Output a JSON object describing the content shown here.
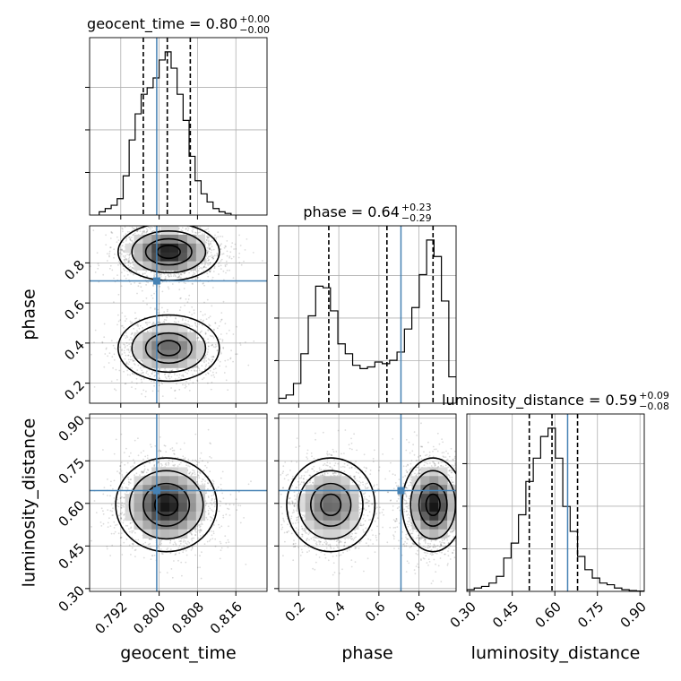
{
  "chart_data": {
    "type": "corner",
    "parameters": [
      "geocent_time",
      "phase",
      "luminosity_distance"
    ],
    "truth_color": "#4682b4",
    "diagonal": [
      {
        "parameter": "geocent_time",
        "title": {
          "main": "geocent_time = 0.80",
          "plus": "+0.00",
          "minus": "−0.00"
        },
        "xlim": [
          0.7855,
          0.8225
        ],
        "quantiles": [
          0.7967,
          0.8017,
          0.8065
        ],
        "truth": 0.7995,
        "hist_x0": 0.7875,
        "hist_dx": 0.00125,
        "hist": [
          0.02,
          0.04,
          0.06,
          0.1,
          0.24,
          0.46,
          0.62,
          0.74,
          0.78,
          0.84,
          0.95,
          1.0,
          0.9,
          0.74,
          0.58,
          0.36,
          0.21,
          0.13,
          0.08,
          0.04,
          0.02,
          0.01
        ]
      },
      {
        "parameter": "phase",
        "title": {
          "main": "phase = 0.64",
          "plus": "+0.23",
          "minus": "−0.29"
        },
        "xlim": [
          0.1,
          0.985
        ],
        "quantiles": [
          0.35,
          0.64,
          0.87
        ],
        "truth": 0.71,
        "hist_x0": 0.1,
        "hist_dx": 0.0369,
        "hist": [
          0.03,
          0.05,
          0.12,
          0.3,
          0.53,
          0.71,
          0.7,
          0.56,
          0.36,
          0.3,
          0.23,
          0.21,
          0.22,
          0.25,
          0.24,
          0.26,
          0.31,
          0.45,
          0.58,
          0.78,
          0.99,
          0.89,
          0.62,
          0.16
        ]
      },
      {
        "parameter": "luminosity_distance",
        "title": {
          "main": "luminosity_distance = 0.59",
          "plus": "+0.09",
          "minus": "−0.08"
        },
        "xlim": [
          0.29,
          0.915
        ],
        "quantiles": [
          0.51,
          0.59,
          0.68
        ],
        "truth": 0.645,
        "hist_x0": 0.29,
        "hist_dx": 0.026,
        "hist": [
          0.01,
          0.02,
          0.03,
          0.05,
          0.09,
          0.2,
          0.29,
          0.46,
          0.66,
          0.8,
          0.93,
          0.98,
          0.8,
          0.51,
          0.36,
          0.21,
          0.13,
          0.08,
          0.05,
          0.04,
          0.02,
          0.01,
          0.005,
          0.002
        ]
      }
    ],
    "panels_2d": [
      {
        "x": "geocent_time",
        "y": "phase",
        "truth": [
          0.7995,
          0.71
        ],
        "blobs": [
          {
            "cx": 0.802,
            "cy": 0.855,
            "sx": 0.0048,
            "sy": 0.065,
            "w": 1.0
          },
          {
            "cx": 0.802,
            "cy": 0.375,
            "sx": 0.0048,
            "sy": 0.075,
            "w": 0.72
          }
        ]
      },
      {
        "x": "geocent_time",
        "y": "luminosity_distance",
        "truth": [
          0.7995,
          0.645
        ],
        "blobs": [
          {
            "cx": 0.8015,
            "cy": 0.595,
            "sx": 0.0048,
            "sy": 0.075,
            "w": 1.0
          }
        ]
      },
      {
        "x": "phase",
        "y": "luminosity_distance",
        "truth": [
          0.71,
          0.645
        ],
        "blobs": [
          {
            "cx": 0.36,
            "cy": 0.595,
            "sx": 0.1,
            "sy": 0.075,
            "w": 0.72
          },
          {
            "cx": 0.87,
            "cy": 0.595,
            "sx": 0.07,
            "sy": 0.075,
            "w": 1.0
          }
        ]
      }
    ],
    "axes": {
      "geocent_time": {
        "lim": [
          0.7855,
          0.8225
        ],
        "ticks": [
          0.792,
          0.8,
          0.808,
          0.816
        ],
        "tick_labels": [
          "0.792",
          "0.800",
          "0.808",
          "0.816"
        ]
      },
      "phase": {
        "lim": [
          0.1,
          0.985
        ],
        "ticks": [
          0.2,
          0.4,
          0.6,
          0.8
        ],
        "tick_labels": [
          "0.2",
          "0.4",
          "0.6",
          "0.8"
        ]
      },
      "luminosity_distance": {
        "lim": [
          0.29,
          0.915
        ],
        "ticks": [
          0.3,
          0.45,
          0.6,
          0.75,
          0.9
        ],
        "tick_labels": [
          "0.30",
          "0.45",
          "0.60",
          "0.75",
          "0.90"
        ]
      }
    },
    "y_axis_labels": {
      "phase": "phase",
      "luminosity_distance": "luminosity_distance"
    },
    "x_axis_labels": [
      "geocent_time",
      "phase",
      "luminosity_distance"
    ],
    "grid": true
  }
}
